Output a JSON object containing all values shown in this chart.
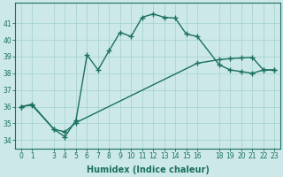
{
  "xlabel": "Humidex (Indice chaleur)",
  "background_color": "#cce8e8",
  "grid_color": "#aad4d4",
  "line_color": "#1a7060",
  "xlim": [
    -0.5,
    23.5
  ],
  "ylim": [
    33.5,
    42.2
  ],
  "yticks": [
    34,
    35,
    36,
    37,
    38,
    39,
    40,
    41
  ],
  "xticks": [
    0,
    1,
    3,
    4,
    5,
    6,
    7,
    8,
    9,
    10,
    11,
    12,
    13,
    14,
    15,
    16,
    18,
    19,
    20,
    21,
    22,
    23
  ],
  "curve1_x": [
    0,
    1,
    3,
    4,
    5,
    6,
    7,
    8,
    9,
    10,
    11,
    12,
    13,
    14,
    15,
    16,
    18,
    19,
    20,
    21,
    22,
    23
  ],
  "curve1_y": [
    36.0,
    36.1,
    34.65,
    34.2,
    35.2,
    39.1,
    38.2,
    39.35,
    40.45,
    40.2,
    41.35,
    41.55,
    41.35,
    41.3,
    40.35,
    40.2,
    38.5,
    38.2,
    38.1,
    38.0,
    38.2,
    38.2
  ],
  "curve2_x": [
    0,
    1,
    3,
    4,
    5,
    16,
    18,
    19,
    20,
    21,
    22,
    23
  ],
  "curve2_y": [
    36.0,
    36.15,
    34.65,
    34.5,
    35.05,
    38.6,
    38.82,
    38.88,
    38.92,
    38.95,
    38.2,
    38.2
  ],
  "markersize": 2.5,
  "linewidth": 1.0,
  "tick_fontsize": 5.5,
  "label_fontsize": 7.0
}
